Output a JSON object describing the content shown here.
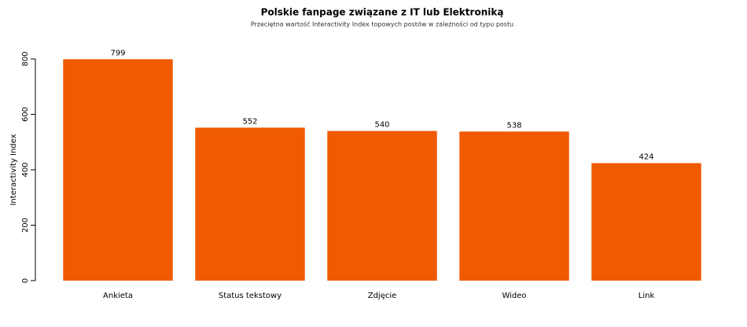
{
  "chart_data": {
    "type": "bar",
    "title": "Polskie fanpage związane z IT lub Elektroniką",
    "subtitle": "Przeciętna wartość Interactivity Index topowych postów w zależności od typu postu",
    "y_label": "Interactivity Index",
    "categories": [
      "Ankieta",
      "Status tekstowy",
      "Zdjęcie",
      "Wideo",
      "Link"
    ],
    "values": [
      799,
      552,
      540,
      538,
      424
    ],
    "color": "#f05a00",
    "ylim": [
      0,
      800
    ],
    "yticks": [
      0,
      200,
      400,
      600,
      800
    ],
    "grid": false
  }
}
